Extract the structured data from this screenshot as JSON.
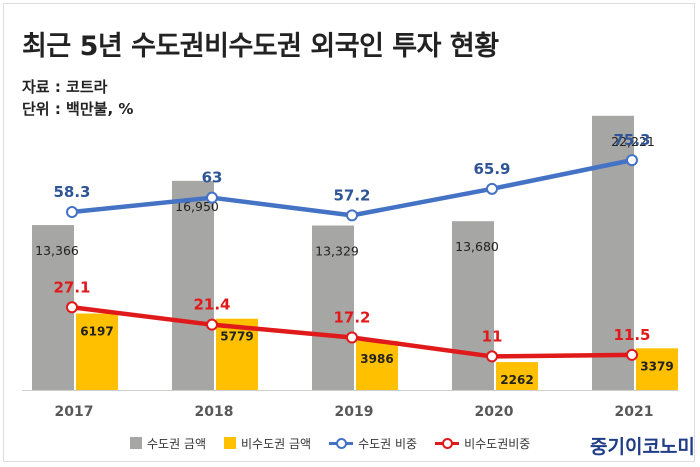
{
  "header": {
    "title": "최근 5년 수도권비수도권 외국인 투자 현황",
    "source": "자료 : 코트라",
    "unit": "단위 : 백만불, %"
  },
  "brand": "중기이코노미",
  "chart_data": {
    "type": "bar",
    "categories": [
      "2017",
      "2018",
      "2019",
      "2020",
      "2021"
    ],
    "series": [
      {
        "name": "수도권 금액",
        "type": "bar",
        "axis": "amount",
        "color": "#a6a6a4",
        "values": [
          13366,
          16950,
          13329,
          13680,
          22221
        ],
        "labels": [
          "13,366",
          "16,950",
          "13,329",
          "13,680",
          "22,221"
        ]
      },
      {
        "name": "비수도권 금액",
        "type": "bar",
        "axis": "amount",
        "color": "#ffc000",
        "values": [
          6197,
          5779,
          3986,
          2262,
          3379
        ],
        "labels": [
          "6197",
          "5779",
          "3986",
          "2262",
          "3379"
        ]
      },
      {
        "name": "수도권 비중",
        "type": "line",
        "axis": "share",
        "color": "#4472c4",
        "values": [
          58.3,
          63,
          57.2,
          65.9,
          75.3
        ],
        "labels": [
          "58.3",
          "63",
          "57.2",
          "65.9",
          "75.3"
        ]
      },
      {
        "name": "비수도권비중",
        "type": "line",
        "axis": "share",
        "color": "#e0191a",
        "values": [
          27.1,
          21.4,
          17.2,
          11,
          11.5
        ],
        "labels": [
          "27.1",
          "21.4",
          "17.2",
          "11",
          "11.5"
        ]
      }
    ],
    "amount_range": [
      0,
      23500
    ],
    "share_range": [
      0,
      95
    ],
    "grid": false,
    "legend_position": "bottom"
  }
}
